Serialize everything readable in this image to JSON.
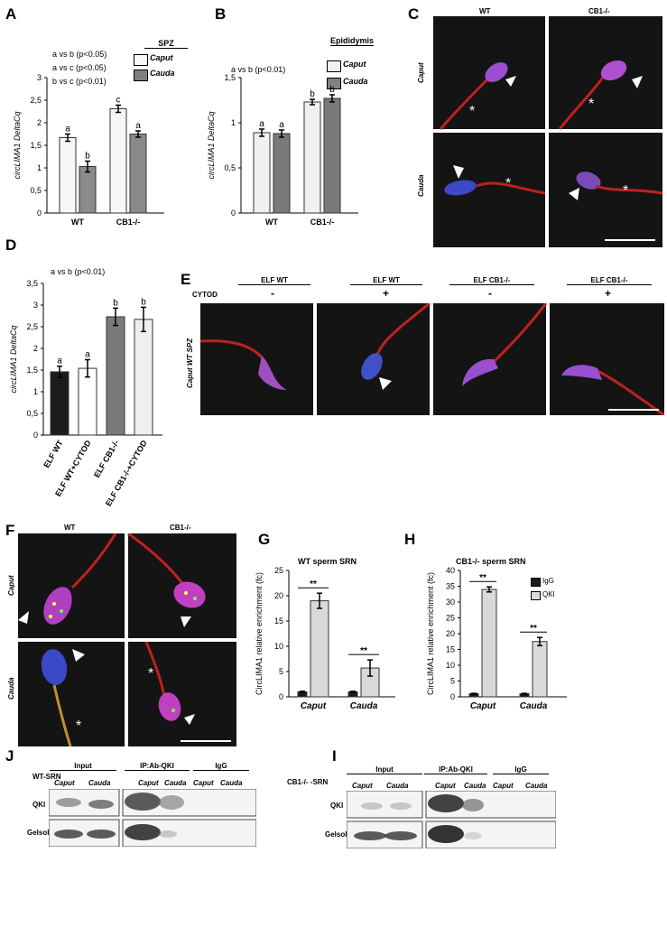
{
  "panels": {
    "A": "A",
    "B": "B",
    "C": "C",
    "D": "D",
    "E": "E",
    "F": "F",
    "G": "G",
    "H": "H",
    "J": "J",
    "I": "I"
  },
  "A": {
    "stats": [
      "a vs b (p<0.05)",
      "a vs c (p<0.05)",
      "b vs c (p<0.01)"
    ],
    "legend_title": "SPZ",
    "legend": [
      "Caput",
      "Cauda"
    ],
    "ylabel": "circLIMA1 DeltaCq",
    "groups": [
      "WT",
      "CB1-/-"
    ],
    "letters": [
      "a",
      "b",
      "c",
      "a"
    ]
  },
  "B": {
    "stats": [
      "a vs b (p<0.01)"
    ],
    "legend_title": "Epididymis",
    "legend": [
      "Caput",
      "Cauda"
    ],
    "ylabel": "circLIMA1 DeltaCq",
    "groups": [
      "WT",
      "CB1-/-"
    ],
    "letters": [
      "a",
      "a",
      "b",
      "b"
    ]
  },
  "C": {
    "cols": [
      "WT",
      "CB1-/-"
    ],
    "rows": [
      "Caput",
      "Cauda"
    ]
  },
  "D": {
    "stats": [
      "a vs b (p<0.01)"
    ],
    "ylabel": "circLIMA1 DeltaCq",
    "categories": [
      "ELF WT",
      "ELF WT+CYTOD",
      "ELF CB1-/-",
      "ELF CB1-/-+CYTOD"
    ],
    "letters": [
      "a",
      "a",
      "b",
      "b"
    ]
  },
  "E": {
    "cols": [
      "ELF WT",
      "ELF WT",
      "ELF CB1-/-",
      "ELF CB1-/-"
    ],
    "cytod_label": "CYTOD",
    "cytod": [
      "-",
      "+",
      "-",
      "+"
    ],
    "row": "Caput WT SPZ"
  },
  "F": {
    "cols": [
      "WT",
      "CB1-/-"
    ],
    "rows": [
      "Caput",
      "Cauda"
    ]
  },
  "G": {
    "title": "WT sperm SRN",
    "ylabel": "CircLIMA1 relative enrichment (fc)",
    "groups": [
      "Caput",
      "Cauda"
    ],
    "sig": [
      "**",
      "**"
    ]
  },
  "H": {
    "title": "CB1-/- sperm SRN",
    "ylabel": "CircLIMA1 relative enrichment (fc)",
    "groups": [
      "Caput",
      "Cauda"
    ],
    "legend": [
      "IgG",
      "QKI"
    ],
    "sig": [
      "**",
      "**"
    ]
  },
  "J": {
    "prefix": "WT-SRN",
    "headers": [
      "Input",
      "IP:Ab-QKI",
      "IgG"
    ],
    "lanes": [
      "Caput",
      "Cauda",
      "Caput",
      "Cauda",
      "Caput",
      "Cauda"
    ],
    "rows": [
      "QKI",
      "Gelsolin"
    ]
  },
  "I": {
    "prefix": "CB1-/- -SRN",
    "headers": [
      "Input",
      "IP:Ab-QKI",
      "IgG"
    ],
    "lanes": [
      "Caput",
      "Cauda",
      "Caput",
      "Cauda",
      "Caput",
      "Cauda"
    ],
    "rows": [
      "QKI",
      "Gelsolin"
    ]
  },
  "chart_data": [
    {
      "id": "A",
      "type": "bar",
      "categories": [
        "WT",
        "CB1-/-"
      ],
      "series": [
        {
          "name": "Caput",
          "values": [
            1.67,
            2.31
          ],
          "err": [
            0.08,
            0.08
          ]
        },
        {
          "name": "Cauda",
          "values": [
            1.03,
            1.75
          ],
          "err": [
            0.12,
            0.07
          ]
        }
      ],
      "ylim": [
        0,
        3
      ],
      "yticks": [
        0,
        0.5,
        1,
        1.5,
        2,
        2.5,
        3
      ],
      "ytick_labels": [
        "0",
        "0,5",
        "1",
        "1,5",
        "2",
        "2,5",
        "3"
      ]
    },
    {
      "id": "B",
      "type": "bar",
      "categories": [
        "WT",
        "CB1-/-"
      ],
      "series": [
        {
          "name": "Caput",
          "values": [
            0.89,
            1.23
          ],
          "err": [
            0.04,
            0.03
          ]
        },
        {
          "name": "Cauda",
          "values": [
            0.88,
            1.27
          ],
          "err": [
            0.04,
            0.04
          ]
        }
      ],
      "ylim": [
        0,
        1.5
      ],
      "yticks": [
        0,
        0.5,
        1,
        1.5
      ],
      "ytick_labels": [
        "0",
        "0,5",
        "1",
        "1,5"
      ]
    },
    {
      "id": "D",
      "type": "bar",
      "categories": [
        "ELF WT",
        "ELF WT+CYTOD",
        "ELF CB1-/-",
        "ELF CB1-/-+CYTOD"
      ],
      "values": [
        1.46,
        1.54,
        2.73,
        2.67
      ],
      "err": [
        0.13,
        0.2,
        0.2,
        0.28
      ],
      "ylim": [
        0,
        3.5
      ],
      "yticks": [
        0,
        0.5,
        1,
        1.5,
        2,
        2.5,
        3,
        3.5
      ],
      "ytick_labels": [
        "0",
        "0,5",
        "1",
        "1,5",
        "2",
        "2,5",
        "3",
        "3,5"
      ]
    },
    {
      "id": "G",
      "type": "bar",
      "categories": [
        "Caput",
        "Cauda"
      ],
      "series": [
        {
          "name": "IgG",
          "values": [
            1,
            1
          ],
          "err": [
            0.1,
            0.1
          ]
        },
        {
          "name": "QKI",
          "values": [
            19,
            5.7
          ],
          "err": [
            1.5,
            1.6
          ]
        }
      ],
      "ylim": [
        0,
        25
      ],
      "yticks": [
        0,
        5,
        10,
        15,
        20,
        25
      ]
    },
    {
      "id": "H",
      "type": "bar",
      "categories": [
        "Caput",
        "Cauda"
      ],
      "series": [
        {
          "name": "IgG",
          "values": [
            1,
            1
          ],
          "err": [
            0.1,
            0.1
          ]
        },
        {
          "name": "QKI",
          "values": [
            34,
            17.5
          ],
          "err": [
            0.8,
            1.3
          ]
        }
      ],
      "ylim": [
        0,
        40
      ],
      "yticks": [
        0,
        5,
        10,
        15,
        20,
        25,
        30,
        35,
        40
      ]
    }
  ]
}
